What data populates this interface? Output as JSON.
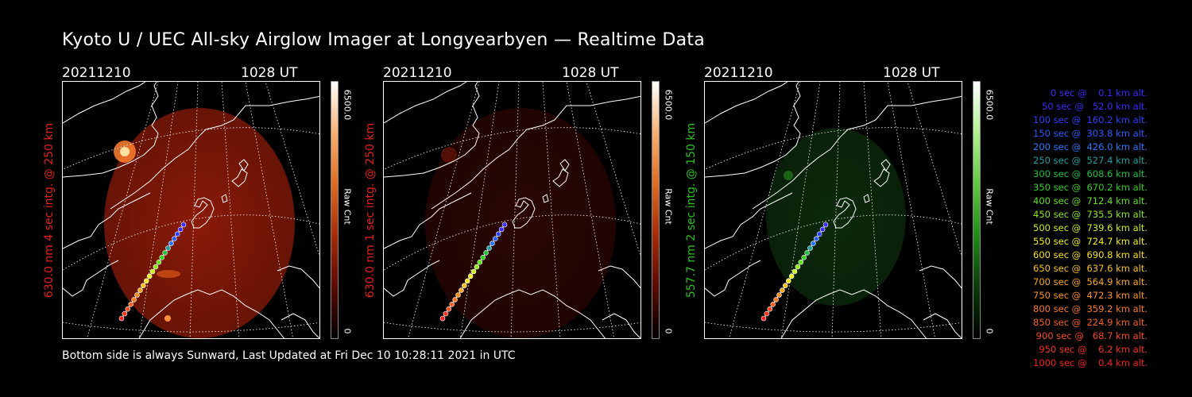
{
  "title": "Kyoto U / UEC All-sky Airglow Imager at Longyearbyen — Realtime Data",
  "footer": "Bottom side is always Sunward, Last Updated at Fri Dec 10 10:28:11 2021 in UTC",
  "panels": [
    {
      "date": "20211210",
      "time": "1028 UT",
      "ylabel": "630.0 nm 4 sec intg. @ 250 km",
      "label_color": "#e0201a",
      "cbar_max": "6500.0",
      "cbar_label": "Raw Cnt",
      "cbar_min": "0",
      "image_color": "#8a1a08"
    },
    {
      "date": "20211210",
      "time": "1028 UT",
      "ylabel": "630.0 nm 1 sec intg. @ 250 km",
      "label_color": "#e0201a",
      "cbar_max": "6500.0",
      "cbar_label": "Raw Cnt",
      "cbar_min": "0",
      "image_color": "#2a0603"
    },
    {
      "date": "20211210",
      "time": "1028 UT",
      "ylabel": "557.7 nm 2 sec intg. @ 150 km",
      "label_color": "#28c020",
      "cbar_max": "6500.0",
      "cbar_label": "Raw Cnt",
      "cbar_min": "0",
      "image_color": "#0c2a0c"
    }
  ],
  "legend": [
    {
      "text": "   0 sec @    0.1 km alt.",
      "color": "#3a2cff"
    },
    {
      "text": "  50 sec @   52.0 km alt.",
      "color": "#3a2cff"
    },
    {
      "text": " 100 sec @  160.2 km alt.",
      "color": "#2a40ff"
    },
    {
      "text": " 150 sec @  303.8 km alt.",
      "color": "#2a5cff"
    },
    {
      "text": " 200 sec @  426.0 km alt.",
      "color": "#2a78ff"
    },
    {
      "text": " 250 sec @  527.4 km alt.",
      "color": "#20a0a0"
    },
    {
      "text": " 300 sec @  608.6 km alt.",
      "color": "#20c040"
    },
    {
      "text": " 350 sec @  670.2 km alt.",
      "color": "#30d020"
    },
    {
      "text": " 400 sec @  712.4 km alt.",
      "color": "#60e020"
    },
    {
      "text": " 450 sec @  735.5 km alt.",
      "color": "#90e820"
    },
    {
      "text": " 500 sec @  739.6 km alt.",
      "color": "#c8f020"
    },
    {
      "text": " 550 sec @  724.7 km alt.",
      "color": "#f0f020"
    },
    {
      "text": " 600 sec @  690.8 km alt.",
      "color": "#f8e020"
    },
    {
      "text": " 650 sec @  637.6 km alt.",
      "color": "#f8c020"
    },
    {
      "text": " 700 sec @  564.9 km alt.",
      "color": "#f8a820"
    },
    {
      "text": " 750 sec @  472.3 km alt.",
      "color": "#f89020"
    },
    {
      "text": " 800 sec @  359.2 km alt.",
      "color": "#f87820"
    },
    {
      "text": " 850 sec @  224.9 km alt.",
      "color": "#f86020"
    },
    {
      "text": " 900 sec @   68.7 km alt.",
      "color": "#f84820"
    },
    {
      "text": " 950 sec @    6.2 km alt.",
      "color": "#f83020"
    },
    {
      "text": "1000 sec @    0.4 km alt.",
      "color": "#f82020"
    }
  ]
}
